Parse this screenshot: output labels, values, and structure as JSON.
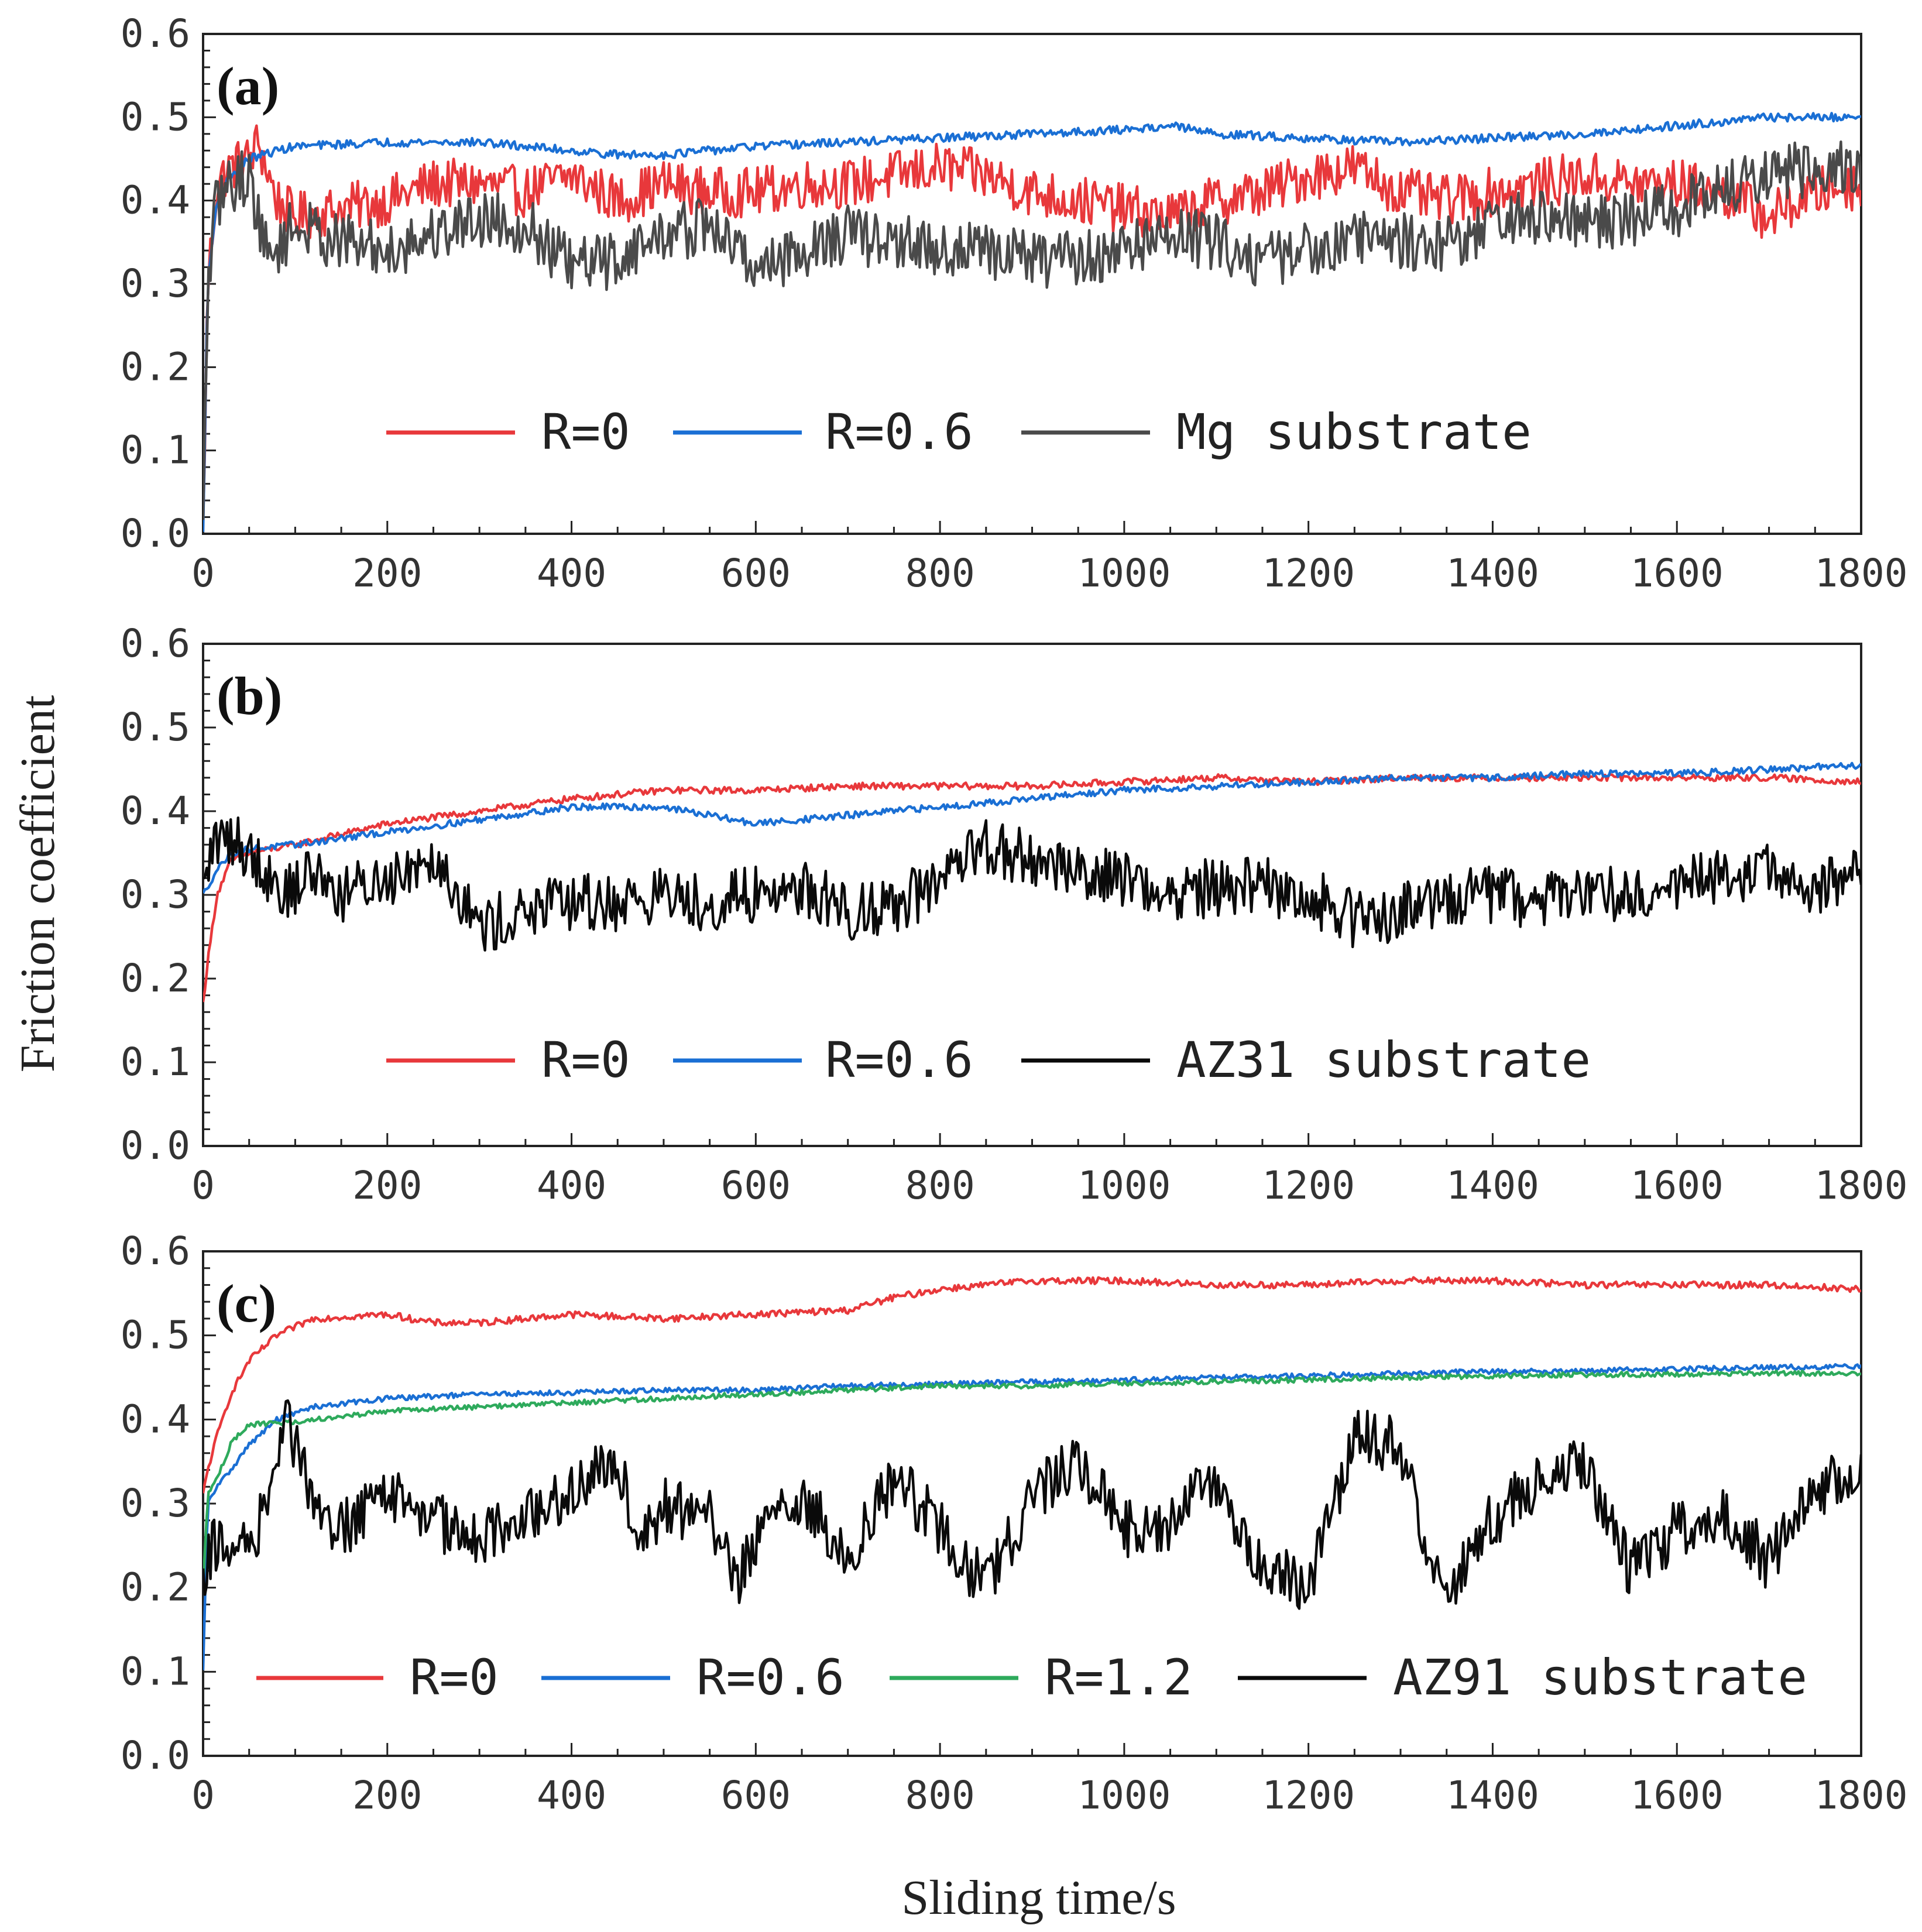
{
  "chart_data": {
    "type": "line",
    "ylabel": "Friction coefficient",
    "xlabel": "Sliding time/s",
    "xlim": [
      0,
      1800
    ],
    "ylim": [
      0,
      0.6
    ],
    "x_ticks": [
      "0",
      "200",
      "400",
      "600",
      "800",
      "1000",
      "1200",
      "1400",
      "1600",
      "1800"
    ],
    "y_ticks": [
      "0.0",
      "0.1",
      "0.2",
      "0.3",
      "0.4",
      "0.5",
      "0.6"
    ],
    "panels": [
      {
        "label": "(a)",
        "series": [
          {
            "name": "R=0",
            "color": "#e8383b",
            "x": [
              0,
              5,
              15,
              30,
              50,
              60,
              80,
              100,
              150,
              200,
              250,
              300,
              350,
              400,
              450,
              500,
              550,
              600,
              650,
              700,
              750,
              800,
              850,
              900,
              950,
              1000,
              1050,
              1100,
              1150,
              1200,
              1250,
              1300,
              1350,
              1400,
              1450,
              1500,
              1550,
              1600,
              1650,
              1700,
              1750,
              1800
            ],
            "y": [
              0.0,
              0.3,
              0.42,
              0.44,
              0.45,
              0.47,
              0.4,
              0.38,
              0.39,
              0.4,
              0.42,
              0.42,
              0.41,
              0.43,
              0.4,
              0.42,
              0.41,
              0.41,
              0.42,
              0.42,
              0.43,
              0.44,
              0.43,
              0.41,
              0.4,
              0.39,
              0.38,
              0.4,
              0.41,
              0.43,
              0.44,
              0.41,
              0.4,
              0.41,
              0.42,
              0.43,
              0.42,
              0.42,
              0.41,
              0.38,
              0.41,
              0.42
            ],
            "noise": 0.03
          },
          {
            "name": "R=0.6",
            "color": "#1a6fd4",
            "x": [
              0,
              5,
              15,
              30,
              50,
              80,
              100,
              200,
              300,
              400,
              450,
              500,
              600,
              700,
              800,
              900,
              1000,
              1050,
              1100,
              1200,
              1300,
              1400,
              1500,
              1600,
              1700,
              1800
            ],
            "y": [
              0.0,
              0.3,
              0.4,
              0.43,
              0.45,
              0.46,
              0.465,
              0.47,
              0.47,
              0.46,
              0.455,
              0.455,
              0.465,
              0.47,
              0.475,
              0.48,
              0.485,
              0.49,
              0.48,
              0.475,
              0.47,
              0.475,
              0.48,
              0.49,
              0.5,
              0.5
            ],
            "noise": 0.005
          },
          {
            "name": "Mg substrate",
            "color": "#4a4a4a",
            "x": [
              0,
              5,
              15,
              30,
              50,
              70,
              100,
              150,
              200,
              250,
              300,
              350,
              400,
              450,
              500,
              550,
              600,
              650,
              700,
              750,
              800,
              850,
              900,
              950,
              1000,
              1050,
              1100,
              1150,
              1200,
              1250,
              1300,
              1350,
              1400,
              1450,
              1500,
              1550,
              1600,
              1650,
              1700,
              1750,
              1800
            ],
            "y": [
              0.0,
              0.3,
              0.4,
              0.42,
              0.43,
              0.33,
              0.37,
              0.35,
              0.34,
              0.36,
              0.38,
              0.37,
              0.32,
              0.33,
              0.36,
              0.37,
              0.32,
              0.34,
              0.36,
              0.35,
              0.34,
              0.34,
              0.33,
              0.33,
              0.34,
              0.36,
              0.35,
              0.33,
              0.34,
              0.36,
              0.35,
              0.35,
              0.37,
              0.38,
              0.37,
              0.38,
              0.39,
              0.41,
              0.43,
              0.44,
              0.44
            ],
            "noise": 0.035
          }
        ]
      },
      {
        "label": "(b)",
        "series": [
          {
            "name": "R=0",
            "color": "#e8383b",
            "x": [
              0,
              5,
              15,
              30,
              50,
              100,
              200,
              300,
              400,
              500,
              600,
              700,
              800,
              900,
              1000,
              1100,
              1200,
              1300,
              1400,
              1500,
              1600,
              1700,
              1800
            ],
            "y": [
              0.17,
              0.22,
              0.3,
              0.34,
              0.35,
              0.36,
              0.385,
              0.4,
              0.415,
              0.425,
              0.425,
              0.43,
              0.43,
              0.43,
              0.435,
              0.44,
              0.435,
              0.44,
              0.44,
              0.44,
              0.44,
              0.44,
              0.435
            ],
            "noise": 0.004
          },
          {
            "name": "R=0.6",
            "color": "#1a6fd4",
            "x": [
              0,
              5,
              15,
              30,
              50,
              100,
              200,
              300,
              400,
              500,
              550,
              600,
              650,
              700,
              800,
              900,
              1000,
              1100,
              1200,
              1300,
              1400,
              1500,
              1600,
              1700,
              1800
            ],
            "y": [
              0.3,
              0.31,
              0.33,
              0.35,
              0.355,
              0.36,
              0.375,
              0.39,
              0.405,
              0.405,
              0.395,
              0.385,
              0.39,
              0.395,
              0.405,
              0.415,
              0.425,
              0.43,
              0.435,
              0.44,
              0.44,
              0.445,
              0.445,
              0.45,
              0.455
            ],
            "noise": 0.004
          },
          {
            "name": "AZ31 substrate",
            "color": "#0a0a0a",
            "x": [
              0,
              10,
              30,
              60,
              90,
              120,
              150,
              200,
              250,
              280,
              300,
              350,
              400,
              450,
              500,
              550,
              600,
              650,
              700,
              750,
              800,
              850,
              900,
              950,
              1000,
              1050,
              1100,
              1150,
              1200,
              1250,
              1300,
              1350,
              1400,
              1450,
              1500,
              1550,
              1600,
              1650,
              1700,
              1750,
              1800
            ],
            "y": [
              0.3,
              0.36,
              0.37,
              0.34,
              0.3,
              0.33,
              0.3,
              0.32,
              0.35,
              0.3,
              0.26,
              0.28,
              0.29,
              0.29,
              0.3,
              0.29,
              0.3,
              0.31,
              0.28,
              0.29,
              0.31,
              0.36,
              0.34,
              0.33,
              0.32,
              0.3,
              0.31,
              0.31,
              0.3,
              0.27,
              0.28,
              0.3,
              0.3,
              0.29,
              0.31,
              0.3,
              0.31,
              0.32,
              0.33,
              0.3,
              0.33
            ],
            "noise": 0.035
          }
        ]
      },
      {
        "label": "(c)",
        "series": [
          {
            "name": "R=0",
            "color": "#e8383b",
            "x": [
              0,
              5,
              15,
              30,
              50,
              80,
              120,
              200,
              250,
              300,
              400,
              500,
              600,
              700,
              750,
              800,
              900,
              1000,
              1100,
              1200,
              1300,
              1400,
              1500,
              1600,
              1700,
              1800
            ],
            "y": [
              0.31,
              0.34,
              0.38,
              0.43,
              0.47,
              0.5,
              0.52,
              0.525,
              0.515,
              0.515,
              0.525,
              0.52,
              0.525,
              0.53,
              0.545,
              0.555,
              0.565,
              0.565,
              0.56,
              0.56,
              0.565,
              0.565,
              0.56,
              0.56,
              0.56,
              0.555
            ],
            "noise": 0.004
          },
          {
            "name": "R=0.6",
            "color": "#1a6fd4",
            "x": [
              0,
              5,
              15,
              30,
              50,
              80,
              120,
              200,
              300,
              400,
              500,
              600,
              700,
              800,
              900,
              1000,
              1100,
              1200,
              1300,
              1400,
              1500,
              1600,
              1700,
              1800
            ],
            "y": [
              0.1,
              0.3,
              0.32,
              0.34,
              0.37,
              0.4,
              0.415,
              0.425,
              0.43,
              0.432,
              0.435,
              0.435,
              0.44,
              0.442,
              0.445,
              0.447,
              0.45,
              0.452,
              0.455,
              0.457,
              0.458,
              0.46,
              0.462,
              0.463
            ],
            "noise": 0.003
          },
          {
            "name": "R=1.2",
            "color": "#2eaa5c",
            "x": [
              0,
              5,
              15,
              30,
              45,
              60,
              80,
              120,
              200,
              300,
              400,
              500,
              600,
              700,
              800,
              900,
              1000,
              1100,
              1200,
              1300,
              1400,
              1500,
              1600,
              1700,
              1800
            ],
            "y": [
              0.2,
              0.31,
              0.33,
              0.37,
              0.39,
              0.395,
              0.395,
              0.4,
              0.41,
              0.415,
              0.42,
              0.425,
              0.43,
              0.435,
              0.44,
              0.44,
              0.443,
              0.445,
              0.447,
              0.45,
              0.452,
              0.453,
              0.454,
              0.455,
              0.455
            ],
            "noise": 0.003
          },
          {
            "name": "AZ91 substrate",
            "color": "#0a0a0a",
            "x": [
              0,
              10,
              30,
              60,
              90,
              120,
              150,
              200,
              250,
              300,
              350,
              400,
              450,
              470,
              500,
              550,
              580,
              600,
              650,
              700,
              750,
              800,
              850,
              900,
              950,
              1000,
              1050,
              1100,
              1150,
              1200,
              1250,
              1300,
              1330,
              1350,
              1400,
              1450,
              1500,
              1550,
              1600,
              1650,
              1700,
              1750,
              1800
            ],
            "y": [
              0.2,
              0.25,
              0.24,
              0.27,
              0.4,
              0.3,
              0.27,
              0.31,
              0.28,
              0.26,
              0.29,
              0.31,
              0.36,
              0.25,
              0.3,
              0.28,
              0.21,
              0.26,
              0.31,
              0.24,
              0.33,
              0.27,
              0.2,
              0.31,
              0.35,
              0.27,
              0.28,
              0.33,
              0.22,
              0.2,
              0.38,
              0.37,
              0.23,
              0.2,
              0.28,
              0.33,
              0.35,
              0.22,
              0.27,
              0.29,
              0.23,
              0.32,
              0.33
            ],
            "noise": 0.035
          }
        ]
      }
    ]
  }
}
